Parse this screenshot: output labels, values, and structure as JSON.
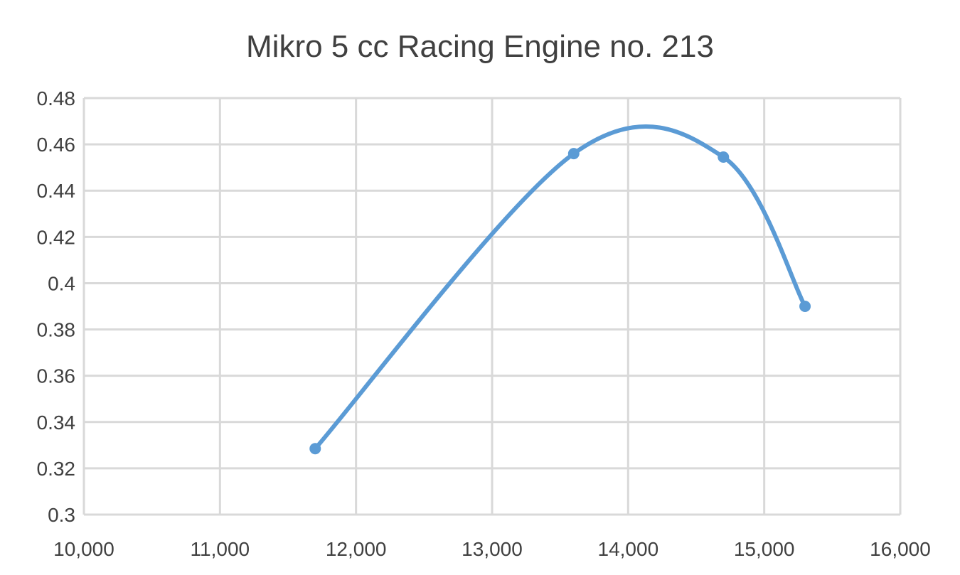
{
  "chart_data": {
    "type": "scatter",
    "title": "Mikro 5 cc Racing Engine no. 213",
    "xlabel": "",
    "ylabel": "",
    "xlim": [
      10000,
      16000
    ],
    "ylim": [
      0.3,
      0.48
    ],
    "x_ticks": [
      10000,
      11000,
      12000,
      13000,
      14000,
      15000,
      16000
    ],
    "x_tick_labels": [
      "10,000",
      "11,000",
      "12,000",
      "13,000",
      "14,000",
      "15,000",
      "16,000"
    ],
    "y_ticks": [
      0.3,
      0.32,
      0.34,
      0.36,
      0.38,
      0.4,
      0.42,
      0.44,
      0.46,
      0.48
    ],
    "y_tick_labels": [
      "0.3",
      "0.32",
      "0.34",
      "0.36",
      "0.38",
      "0.4",
      "0.42",
      "0.44",
      "0.46",
      "0.48"
    ],
    "grid": true,
    "smooth": true,
    "legend": "none",
    "series": [
      {
        "color": "#5b9bd5",
        "x": [
          11700,
          13600,
          14700,
          15300
        ],
        "y": [
          0.3285,
          0.456,
          0.4545,
          0.39
        ]
      }
    ]
  }
}
